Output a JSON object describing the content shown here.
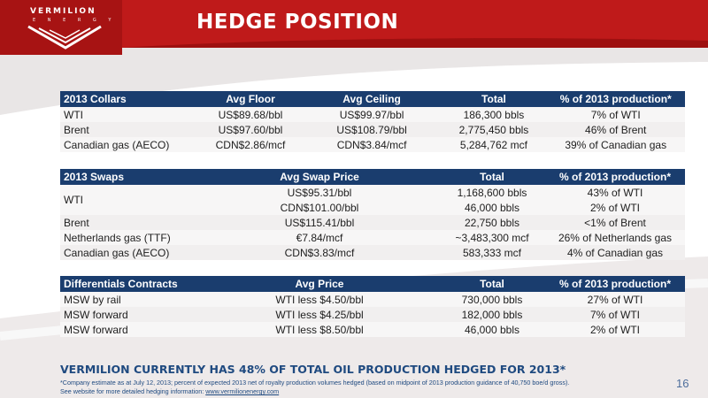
{
  "logo": {
    "word": "VERMILION",
    "sub": "E N E R G Y"
  },
  "title": "HEDGE POSITION",
  "colors": {
    "red": "#bf1a1a",
    "navy": "#1a3d6e",
    "text_blue": "#1f4a80"
  },
  "collars": {
    "headers": [
      "2013 Collars",
      "Avg Floor",
      "Avg Ceiling",
      "Total",
      "% of 2013 production*"
    ],
    "rows": [
      [
        "WTI",
        "US$89.68/bbl",
        "US$99.97/bbl",
        "186,300 bbls",
        "7% of WTI"
      ],
      [
        "Brent",
        "US$97.60/bbl",
        "US$108.79/bbl",
        "2,775,450 bbls",
        "46% of Brent"
      ],
      [
        "Canadian gas (AECO)",
        "CDN$2.86/mcf",
        "CDN$3.84/mcf",
        "5,284,762 mcf",
        "39% of Canadian gas"
      ]
    ]
  },
  "swaps": {
    "headers": [
      "2013 Swaps",
      "Avg Swap Price",
      "Total",
      "% of 2013 production*"
    ],
    "wti": {
      "label": "WTI",
      "rows": [
        [
          "US$95.31/bbl",
          "1,168,600 bbls",
          "43% of WTI"
        ],
        [
          "CDN$101.00/bbl",
          "46,000 bbls",
          "2% of WTI"
        ]
      ]
    },
    "rows": [
      [
        "Brent",
        "US$115.41/bbl",
        "22,750 bbls",
        "<1% of Brent"
      ],
      [
        "Netherlands gas (TTF)",
        "€7.84/mcf",
        "~3,483,300 mcf",
        "26% of Netherlands gas"
      ],
      [
        "Canadian gas (AECO)",
        "CDN$3.83/mcf",
        "583,333 mcf",
        "4% of Canadian gas"
      ]
    ]
  },
  "differentials": {
    "headers": [
      "Differentials Contracts",
      "Avg Price",
      "Total",
      "% of 2013 production*"
    ],
    "rows": [
      [
        "MSW by rail",
        "WTI less $4.50/bbl",
        "730,000 bbls",
        "27% of WTI"
      ],
      [
        "MSW forward",
        "WTI less $4.25/bbl",
        "182,000 bbls",
        "7% of WTI"
      ],
      [
        "MSW forward",
        "WTI less $8.50/bbl",
        "46,000 bbls",
        "2% of WTI"
      ]
    ]
  },
  "banner": "VERMILION CURRENTLY HAS 48% OF TOTAL OIL PRODUCTION HEDGED FOR 2013*",
  "footnote": {
    "line1": "*Company estimate as at July 12, 2013; percent of expected 2013 net of royalty production volumes hedged (based on midpoint of 2013 production guidance of 40,750 boe/d gross).",
    "line2_prefix": "See website for more detailed hedging information: ",
    "link": "www.vermilionenergy.com"
  },
  "page_number": "16"
}
